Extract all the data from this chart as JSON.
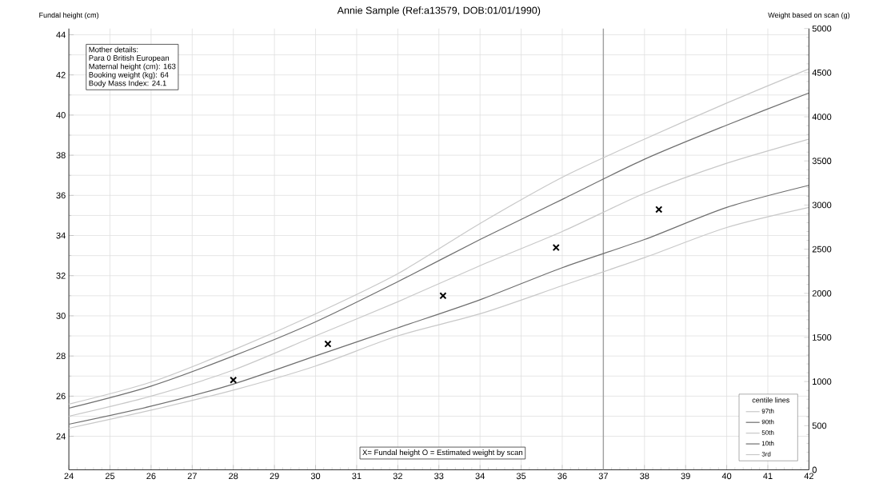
{
  "chart_data": {
    "type": "line",
    "title": "Annie Sample (Ref:a13579, DOB:01/01/1990)",
    "ylabel": "Fundal height (cm)",
    "y2label": "Weight based on scan (g)",
    "legend_title": "centile lines",
    "x": [
      24,
      26,
      28,
      30,
      32,
      34,
      36,
      38,
      40,
      42
    ],
    "series": [
      {
        "name": "97th",
        "color": "#c8c8c8",
        "values": [
          25.6,
          26.7,
          28.3,
          30.1,
          32.1,
          34.6,
          36.9,
          38.8,
          40.6,
          42.3
        ]
      },
      {
        "name": "90th",
        "color": "#6e6e6e",
        "values": [
          25.4,
          26.5,
          28.0,
          29.7,
          31.7,
          33.8,
          35.8,
          37.8,
          39.5,
          41.1
        ]
      },
      {
        "name": "50th",
        "color": "#c8c8c8",
        "values": [
          25.0,
          26.0,
          27.3,
          29.0,
          30.7,
          32.5,
          34.2,
          36.1,
          37.6,
          38.8
        ]
      },
      {
        "name": "10th",
        "color": "#6e6e6e",
        "values": [
          24.6,
          25.5,
          26.6,
          28.0,
          29.4,
          30.8,
          32.4,
          33.8,
          35.4,
          36.5
        ]
      },
      {
        "name": "3rd",
        "color": "#c8c8c8",
        "values": [
          24.4,
          25.3,
          26.3,
          27.5,
          29.0,
          30.1,
          31.5,
          32.9,
          34.4,
          35.4
        ]
      },
      {
        "type": "scatter",
        "marker": "cross",
        "color": "#000000",
        "x": [
          28,
          30.3,
          33.1,
          35.85,
          38.35
        ],
        "values": [
          26.8,
          28.6,
          31.0,
          33.4,
          35.3
        ]
      }
    ],
    "xlim": [
      24,
      42
    ],
    "xticks": [
      24,
      25,
      26,
      27,
      28,
      29,
      30,
      31,
      32,
      33,
      34,
      35,
      36,
      37,
      38,
      39,
      40,
      41,
      42
    ],
    "ylim": [
      22.33,
      44.31
    ],
    "yticks": [
      24,
      26,
      28,
      30,
      32,
      34,
      36,
      38,
      40,
      42,
      44
    ],
    "y2lim": [
      0,
      5000
    ],
    "y2ticks": [
      0,
      500,
      1000,
      1500,
      2000,
      2500,
      3000,
      3500,
      4000,
      4500,
      5000
    ],
    "ref_lines": [
      {
        "axis": "x",
        "value": 37,
        "color": "#a0a0a0"
      }
    ],
    "annotations": [
      "Mother details:",
      "Para 0  British European",
      "Maternal height (cm): 163",
      "Booking weight (kg): 64",
      "Body Mass Index: 24.1",
      "X= Fundal height     O = Estimated weight by scan"
    ],
    "grid": true,
    "legend": "bottom right",
    "marker": "none",
    "line_style": "solid"
  }
}
